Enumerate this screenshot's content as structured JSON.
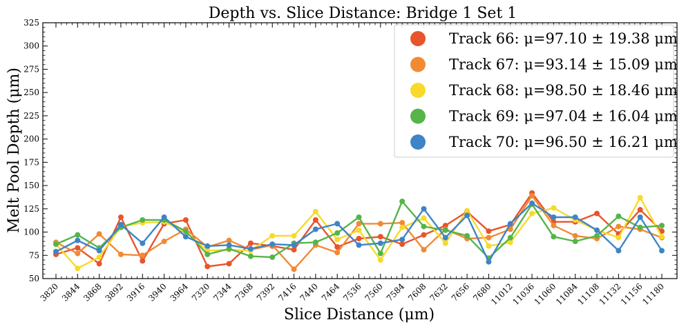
{
  "chart_data": {
    "type": "line",
    "title": "Depth vs. Slice Distance: Bridge 1 Set 1",
    "xlabel": "Slice Distance (μm)",
    "ylabel": "Melt Pool Depth (μm)",
    "ylim": [
      50,
      325
    ],
    "yticks": [
      50,
      75,
      100,
      125,
      150,
      175,
      200,
      225,
      250,
      275,
      300,
      325
    ],
    "categories": [
      "3820",
      "3844",
      "3868",
      "3892",
      "3916",
      "3940",
      "3964",
      "7320",
      "7344",
      "7368",
      "7392",
      "7416",
      "7440",
      "7464",
      "7536",
      "7560",
      "7584",
      "7608",
      "7632",
      "7656",
      "7680",
      "11012",
      "11036",
      "11060",
      "11084",
      "11108",
      "11132",
      "11156",
      "11180"
    ],
    "legend_position": "top-right",
    "series": [
      {
        "name": "Track 66: μ=97.10 ± 19.38 μm",
        "color": "#E8542B",
        "values": [
          76,
          83,
          66,
          116,
          69,
          109,
          113,
          63,
          66,
          88,
          85,
          81,
          113,
          84,
          93,
          95,
          87,
          97,
          107,
          122,
          101,
          108,
          142,
          111,
          111,
          120,
          98,
          124,
          101
        ]
      },
      {
        "name": "Track 67: μ=93.14 ± 15.09 μm",
        "color": "#F18A33",
        "values": [
          89,
          77,
          98,
          76,
          75,
          90,
          103,
          84,
          91,
          81,
          86,
          60,
          86,
          78,
          109,
          109,
          110,
          81,
          103,
          93,
          94,
          103,
          139,
          107,
          96,
          93,
          106,
          103,
          94
        ]
      },
      {
        "name": "Track 68: μ=98.50 ± 18.46 μm",
        "color": "#F7DA2A",
        "values": [
          87,
          61,
          73,
          106,
          110,
          111,
          100,
          80,
          81,
          80,
          96,
          96,
          122,
          92,
          102,
          70,
          105,
          115,
          88,
          123,
          85,
          89,
          120,
          126,
          113,
          102,
          94,
          137,
          95
        ]
      },
      {
        "name": "Track 69: μ=97.04 ± 16.04 μm",
        "color": "#55B548",
        "values": [
          87,
          97,
          83,
          105,
          113,
          113,
          101,
          76,
          82,
          74,
          73,
          88,
          89,
          99,
          116,
          77,
          133,
          106,
          102,
          96,
          72,
          94,
          130,
          95,
          90,
          96,
          117,
          105,
          107
        ]
      },
      {
        "name": "Track 70: μ=96.50 ± 16.21 μm",
        "color": "#3E84C6",
        "values": [
          79,
          91,
          80,
          108,
          88,
          116,
          95,
          85,
          86,
          82,
          87,
          86,
          103,
          109,
          86,
          88,
          92,
          125,
          94,
          118,
          68,
          109,
          131,
          116,
          116,
          102,
          80,
          116,
          80
        ]
      }
    ]
  }
}
